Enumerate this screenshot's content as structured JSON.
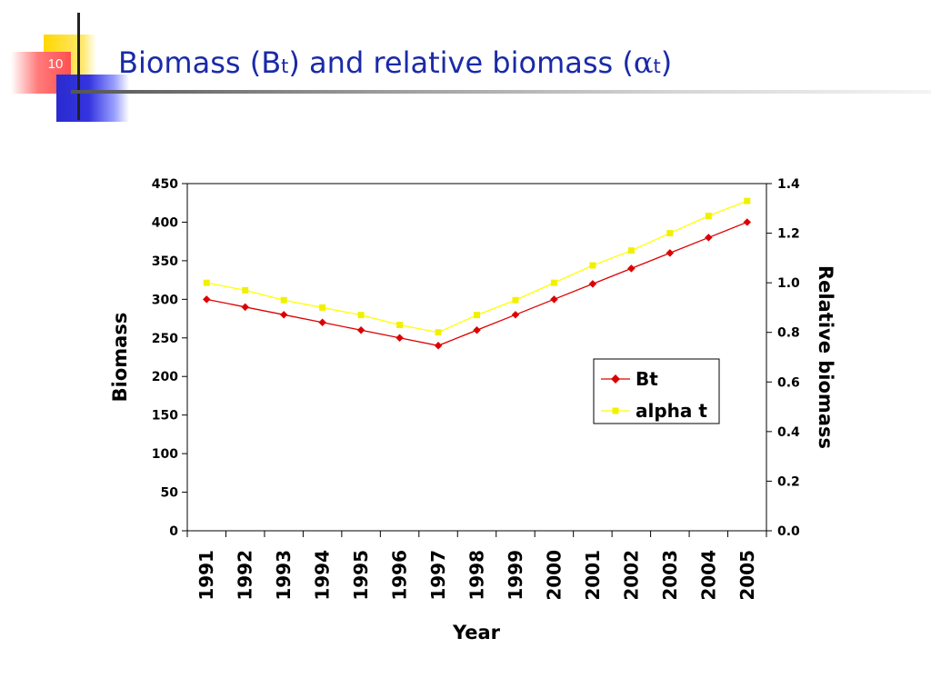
{
  "slide": {
    "number": "10",
    "title_prefix": "Biomass (B",
    "title_sub1": "t",
    "title_mid": ") and relative biomass (",
    "title_alpha": "α",
    "title_sub2": "t",
    "title_suffix": ")"
  },
  "colors": {
    "title": "#1a2aa8",
    "bt_series": "#dd0000",
    "alpha_series": "#ffff00",
    "alpha_marker": "#f0f000"
  },
  "chart_data": {
    "type": "line",
    "xlabel": "Year",
    "ylabel": "Biomass",
    "y2label": "Relative biomass",
    "ylim": [
      0,
      450
    ],
    "y2lim": [
      0,
      1.4
    ],
    "yticks": [
      "0",
      "50",
      "100",
      "150",
      "200",
      "250",
      "300",
      "350",
      "400",
      "450"
    ],
    "y2ticks": [
      "0.0",
      "0.2",
      "0.4",
      "0.6",
      "0.8",
      "1.0",
      "1.2",
      "1.4"
    ],
    "categories": [
      "1991",
      "1992",
      "1993",
      "1994",
      "1995",
      "1996",
      "1997",
      "1998",
      "1999",
      "2000",
      "2001",
      "2002",
      "2003",
      "2004",
      "2005"
    ],
    "grid": false,
    "legend_position": "center-right",
    "series": [
      {
        "name": "Bt",
        "axis": "left",
        "marker": "diamond",
        "values": [
          300,
          290,
          280,
          270,
          260,
          250,
          240,
          260,
          280,
          300,
          320,
          340,
          360,
          380,
          400
        ]
      },
      {
        "name": "alpha t",
        "axis": "right",
        "marker": "square",
        "values": [
          1.0,
          0.97,
          0.93,
          0.9,
          0.87,
          0.83,
          0.8,
          0.87,
          0.93,
          1.0,
          1.07,
          1.13,
          1.2,
          1.27,
          1.33
        ]
      }
    ]
  }
}
